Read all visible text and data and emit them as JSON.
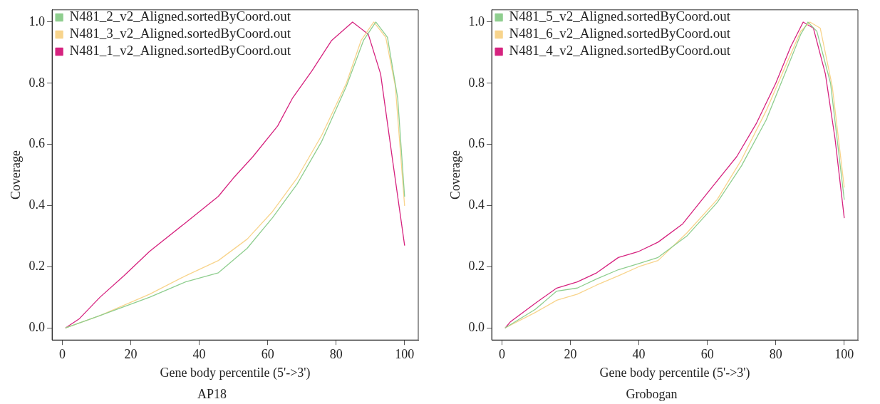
{
  "chart_data": [
    {
      "type": "line",
      "title": "AP18",
      "xlabel": "Gene body percentile (5'->3')",
      "ylabel": "Coverage",
      "xlim": [
        -3,
        104
      ],
      "xticks": [
        0,
        20,
        40,
        60,
        80,
        100
      ],
      "ylim": [
        -0.04,
        1.04
      ],
      "yticks": [
        {
          "value": 0,
          "label": "0.0"
        },
        {
          "value": 0.2,
          "label": "0.2"
        },
        {
          "value": 0.4,
          "label": "0.4"
        },
        {
          "value": 0.6,
          "label": "0.6"
        },
        {
          "value": 0.8,
          "label": "0.8"
        },
        {
          "value": 1,
          "label": "1.0"
        }
      ],
      "grid": false,
      "legend": "top left",
      "marker": "none",
      "line_style": "solid",
      "series": [
        {
          "name": "N481_2_v2_Aligned.sortedByCoord.out",
          "color": "#8fce8f",
          "x": [
            1,
            11,
            25.5,
            36,
            45.6,
            54,
            61.4,
            68.6,
            75.8,
            83,
            88,
            91.6,
            95,
            98,
            100
          ],
          "values": [
            0,
            0.04,
            0.1,
            0.15,
            0.18,
            0.26,
            0.36,
            0.47,
            0.61,
            0.79,
            0.94,
            1.0,
            0.95,
            0.75,
            0.43
          ]
        },
        {
          "name": "N481_3_v2_Aligned.sortedByCoord.out",
          "color": "#f8d48c",
          "x": [
            1,
            11,
            25.5,
            36,
            45.6,
            54,
            61.4,
            68.6,
            75.8,
            83,
            87.3,
            91,
            94.5,
            97.3,
            100
          ],
          "values": [
            0,
            0.04,
            0.11,
            0.17,
            0.22,
            0.29,
            0.38,
            0.49,
            0.63,
            0.8,
            0.94,
            1.0,
            0.95,
            0.79,
            0.4
          ]
        },
        {
          "name": "N481_1_v2_Aligned.sortedByCoord.out",
          "color": "#d6237f",
          "x": [
            1,
            5,
            11,
            18,
            25.5,
            35.6,
            45.6,
            50,
            55.7,
            62.9,
            67.2,
            72.9,
            78.7,
            84.8,
            89.4,
            93,
            96.6,
            100
          ],
          "values": [
            0,
            0.03,
            0.1,
            0.17,
            0.25,
            0.34,
            0.43,
            0.49,
            0.56,
            0.66,
            0.75,
            0.84,
            0.94,
            1.0,
            0.96,
            0.83,
            0.54,
            0.27
          ]
        }
      ]
    },
    {
      "type": "line",
      "title": "Grobogan",
      "xlabel": "Gene body percentile (5'->3')",
      "ylabel": "Coverage",
      "xlim": [
        -3,
        104
      ],
      "xticks": [
        0,
        20,
        40,
        60,
        80,
        100
      ],
      "ylim": [
        -0.04,
        1.04
      ],
      "yticks": [
        {
          "value": 0,
          "label": "0.0"
        },
        {
          "value": 0.2,
          "label": "0.2"
        },
        {
          "value": 0.4,
          "label": "0.4"
        },
        {
          "value": 0.6,
          "label": "0.6"
        },
        {
          "value": 0.8,
          "label": "0.8"
        },
        {
          "value": 1,
          "label": "1.0"
        }
      ],
      "grid": false,
      "legend": "top left",
      "marker": "none",
      "line_style": "solid",
      "series": [
        {
          "name": "N481_5_v2_Aligned.sortedByCoord.out",
          "color": "#8fce8f",
          "x": [
            1,
            9.7,
            16,
            22,
            27.7,
            34,
            40,
            45.6,
            54,
            62.9,
            70,
            77.2,
            83,
            87.3,
            89.4,
            92,
            96,
            100
          ],
          "values": [
            0,
            0.06,
            0.12,
            0.13,
            0.16,
            0.19,
            0.21,
            0.23,
            0.3,
            0.41,
            0.53,
            0.68,
            0.84,
            0.96,
            1.0,
            0.97,
            0.8,
            0.42
          ]
        },
        {
          "name": "N481_6_v2_Aligned.sortedByCoord.out",
          "color": "#f8d48c",
          "x": [
            1,
            9.7,
            16,
            22,
            27.7,
            34,
            40,
            45.6,
            54,
            62.9,
            70,
            77.2,
            83,
            87.3,
            90,
            93,
            96.5,
            100
          ],
          "values": [
            0,
            0.05,
            0.09,
            0.11,
            0.14,
            0.17,
            0.2,
            0.22,
            0.31,
            0.42,
            0.55,
            0.71,
            0.86,
            0.97,
            1.0,
            0.98,
            0.79,
            0.46
          ]
        },
        {
          "name": "N481_4_v2_Aligned.sortedByCoord.out",
          "color": "#d6237f",
          "x": [
            1,
            2.5,
            9.7,
            16,
            22,
            27.7,
            34,
            40,
            45.6,
            52.8,
            61.4,
            68.6,
            74.4,
            80,
            84.4,
            88,
            91,
            94.5,
            97.3,
            100
          ],
          "values": [
            0,
            0.02,
            0.08,
            0.13,
            0.15,
            0.18,
            0.23,
            0.25,
            0.28,
            0.34,
            0.46,
            0.56,
            0.67,
            0.8,
            0.92,
            1.0,
            0.98,
            0.83,
            0.62,
            0.36
          ]
        }
      ]
    }
  ]
}
